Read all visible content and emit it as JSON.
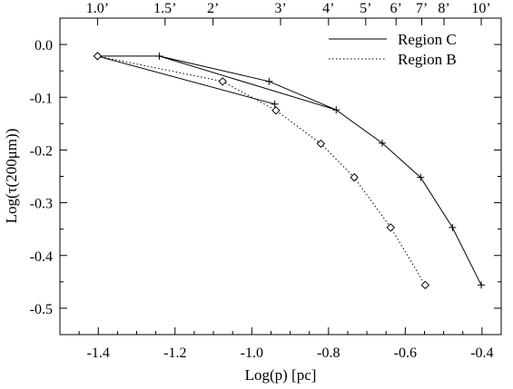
{
  "chart_data": {
    "type": "line",
    "xlabel": "Log(p) [pc]",
    "ylabel": "Log(τ(200μm))",
    "xlim": [
      -1.5,
      -0.35
    ],
    "ylim": [
      -0.55,
      0.05
    ],
    "xticks": [
      -1.4,
      -1.2,
      -1.0,
      -0.8,
      -0.6,
      -0.4
    ],
    "xtick_labels": [
      "-1.4",
      "-1.2",
      "-1.0",
      "-0.8",
      "-0.6",
      "-0.4"
    ],
    "yticks": [
      0.0,
      -0.1,
      -0.2,
      -0.3,
      -0.4,
      -0.5
    ],
    "ytick_labels": [
      "0.0",
      "-0.1",
      "-0.2",
      "-0.3",
      "-0.4",
      "-0.5"
    ],
    "top_axis": {
      "ticks": [
        {
          "x": -1.402,
          "label": "1.0’"
        },
        {
          "x": -1.226,
          "label": "1.5’"
        },
        {
          "x": -1.101,
          "label": "2’"
        },
        {
          "x": -0.925,
          "label": "3’"
        },
        {
          "x": -0.8,
          "label": "4’"
        },
        {
          "x": -0.703,
          "label": "5’"
        },
        {
          "x": -0.624,
          "label": "6’"
        },
        {
          "x": -0.557,
          "label": "7’"
        },
        {
          "x": -0.499,
          "label": "8’"
        },
        {
          "x": -0.402,
          "label": "10’"
        }
      ]
    },
    "legend_position": "top-right",
    "series": [
      {
        "name": "Region C",
        "line_style": "solid",
        "marker": "plus",
        "color": "#000000",
        "x": [
          -0.94,
          -1.402,
          -1.241,
          -0.955,
          -0.78,
          -1.241,
          -0.955,
          -0.78,
          -0.66,
          -0.56,
          -0.477,
          -0.402
        ],
        "y": [
          -0.113,
          -0.022,
          -0.022,
          -0.07,
          -0.124,
          -0.022,
          -0.07,
          -0.124,
          -0.187,
          -0.252,
          -0.347,
          -0.456
        ]
      },
      {
        "name": "Region B",
        "line_style": "dotted",
        "marker": "diamond",
        "color": "#000000",
        "x": [
          -1.402,
          -1.076,
          -0.937,
          -0.82,
          -0.733,
          -0.638,
          -0.548
        ],
        "y": [
          -0.022,
          -0.07,
          -0.125,
          -0.188,
          -0.252,
          -0.347,
          -0.456
        ]
      }
    ]
  }
}
